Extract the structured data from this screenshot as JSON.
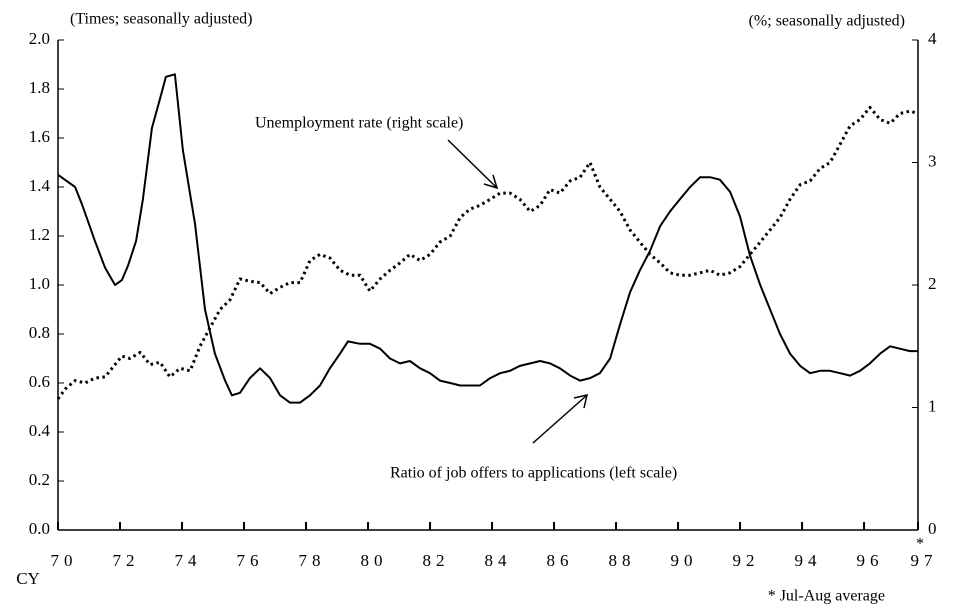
{
  "chart_data": {
    "type": "line",
    "y_unit_label": "(Times; seasonally adjusted)",
    "y2_unit_label": "(%; seasonally adjusted)",
    "x_axis_label": "CY",
    "footnote": "* Jul-Aug average",
    "footnote_marker": "*",
    "xlim": [
      1970,
      1997.74
    ],
    "xticks": [
      {
        "value": 1970,
        "label": "70"
      },
      {
        "value": 1972,
        "label": "72"
      },
      {
        "value": 1974,
        "label": "74"
      },
      {
        "value": 1976,
        "label": "76"
      },
      {
        "value": 1978,
        "label": "78"
      },
      {
        "value": 1980,
        "label": "80"
      },
      {
        "value": 1982,
        "label": "82"
      },
      {
        "value": 1984,
        "label": "84"
      },
      {
        "value": 1986,
        "label": "86"
      },
      {
        "value": 1988,
        "label": "88"
      },
      {
        "value": 1990,
        "label": "90"
      },
      {
        "value": 1992,
        "label": "92"
      },
      {
        "value": 1994,
        "label": "94"
      },
      {
        "value": 1996,
        "label": "96"
      },
      {
        "value": 1997.74,
        "label": "97"
      }
    ],
    "ylim": [
      0,
      2
    ],
    "yticks": [
      {
        "value": 0,
        "label": "0.0"
      },
      0.2,
      0.4,
      0.6,
      0.8,
      {
        "value": 1,
        "label": "1.0"
      },
      1.2,
      1.4,
      1.6,
      1.8,
      {
        "value": 2,
        "label": "2.0"
      }
    ],
    "y2lim": [
      0,
      4
    ],
    "y2ticks": [
      0,
      1,
      2,
      3,
      4
    ],
    "series": [
      {
        "name": "Ratio of job offers to applications (left scale)",
        "color": "#000000",
        "style": "solid",
        "x": [
          1970.0,
          1970.55,
          1970.77,
          1971.19,
          1971.52,
          1971.84,
          1972.06,
          1972.26,
          1972.52,
          1972.74,
          1973.03,
          1973.29,
          1973.48,
          1973.77,
          1974.03,
          1974.42,
          1974.74,
          1975.06,
          1975.39,
          1975.61,
          1975.87,
          1976.19,
          1976.52,
          1976.84,
          1977.16,
          1977.48,
          1977.81,
          1978.13,
          1978.45,
          1978.77,
          1979.1,
          1979.35,
          1979.74,
          1980.06,
          1980.39,
          1980.71,
          1981.03,
          1981.35,
          1981.68,
          1982.0,
          1982.32,
          1982.65,
          1982.97,
          1983.29,
          1983.61,
          1983.94,
          1984.26,
          1984.58,
          1984.9,
          1985.23,
          1985.55,
          1985.87,
          1986.19,
          1986.52,
          1986.84,
          1987.16,
          1987.48,
          1987.81,
          1988.13,
          1988.45,
          1988.77,
          1989.1,
          1989.42,
          1989.74,
          1990.06,
          1990.39,
          1990.71,
          1991.03,
          1991.35,
          1991.68,
          1992.0,
          1992.32,
          1992.65,
          1992.97,
          1993.29,
          1993.61,
          1993.94,
          1994.26,
          1994.58,
          1994.9,
          1995.23,
          1995.55,
          1995.87,
          1996.19,
          1996.52,
          1996.84,
          1997.16,
          1997.48,
          1997.74
        ],
        "values": [
          1.45,
          1.4,
          1.33,
          1.18,
          1.07,
          1.0,
          1.02,
          1.08,
          1.18,
          1.35,
          1.64,
          1.76,
          1.85,
          1.86,
          1.55,
          1.25,
          0.9,
          0.72,
          0.61,
          0.55,
          0.56,
          0.62,
          0.66,
          0.62,
          0.55,
          0.52,
          0.52,
          0.55,
          0.59,
          0.66,
          0.72,
          0.77,
          0.76,
          0.76,
          0.74,
          0.7,
          0.68,
          0.69,
          0.66,
          0.64,
          0.61,
          0.6,
          0.59,
          0.59,
          0.59,
          0.62,
          0.64,
          0.65,
          0.67,
          0.68,
          0.69,
          0.68,
          0.66,
          0.63,
          0.61,
          0.62,
          0.64,
          0.7,
          0.84,
          0.97,
          1.06,
          1.14,
          1.24,
          1.3,
          1.35,
          1.4,
          1.44,
          1.44,
          1.43,
          1.38,
          1.28,
          1.12,
          1.0,
          0.9,
          0.8,
          0.72,
          0.67,
          0.64,
          0.65,
          0.65,
          0.64,
          0.63,
          0.65,
          0.68,
          0.72,
          0.75,
          0.74,
          0.73,
          0.73
        ]
      },
      {
        "name": "Unemployment rate (right scale)",
        "color": "#000000",
        "style": "dotted",
        "axis": "y2",
        "x": [
          1970.0,
          1970.23,
          1970.55,
          1970.87,
          1971.19,
          1971.52,
          1971.84,
          1972.06,
          1972.32,
          1972.65,
          1972.97,
          1973.29,
          1973.61,
          1973.94,
          1974.26,
          1974.58,
          1974.9,
          1975.23,
          1975.55,
          1975.87,
          1976.19,
          1976.52,
          1976.84,
          1977.16,
          1977.48,
          1977.81,
          1978.13,
          1978.45,
          1978.77,
          1979.1,
          1979.42,
          1979.74,
          1980.06,
          1980.39,
          1980.71,
          1981.03,
          1981.35,
          1981.68,
          1982.0,
          1982.32,
          1982.65,
          1982.97,
          1983.29,
          1983.61,
          1983.94,
          1984.26,
          1984.58,
          1984.9,
          1985.23,
          1985.55,
          1985.87,
          1986.19,
          1986.52,
          1986.84,
          1987.16,
          1987.48,
          1987.81,
          1988.13,
          1988.45,
          1988.77,
          1989.1,
          1989.42,
          1989.74,
          1990.06,
          1990.39,
          1990.71,
          1991.03,
          1991.35,
          1991.68,
          1992.0,
          1992.32,
          1992.65,
          1992.97,
          1993.29,
          1993.61,
          1993.94,
          1994.26,
          1994.58,
          1994.9,
          1995.23,
          1995.55,
          1995.87,
          1996.19,
          1996.52,
          1996.84,
          1997.16,
          1997.48,
          1997.74
        ],
        "values": [
          1.07,
          1.15,
          1.22,
          1.2,
          1.24,
          1.25,
          1.35,
          1.42,
          1.4,
          1.45,
          1.35,
          1.37,
          1.25,
          1.32,
          1.3,
          1.5,
          1.65,
          1.8,
          1.88,
          2.05,
          2.03,
          2.02,
          1.93,
          1.98,
          2.02,
          2.02,
          2.2,
          2.25,
          2.22,
          2.12,
          2.08,
          2.08,
          1.95,
          2.05,
          2.12,
          2.18,
          2.25,
          2.2,
          2.25,
          2.35,
          2.4,
          2.55,
          2.62,
          2.65,
          2.7,
          2.75,
          2.75,
          2.7,
          2.6,
          2.65,
          2.78,
          2.75,
          2.85,
          2.88,
          3.0,
          2.8,
          2.7,
          2.6,
          2.45,
          2.35,
          2.25,
          2.18,
          2.1,
          2.08,
          2.08,
          2.1,
          2.12,
          2.08,
          2.1,
          2.15,
          2.25,
          2.35,
          2.45,
          2.55,
          2.7,
          2.82,
          2.85,
          2.95,
          3.0,
          3.15,
          3.3,
          3.35,
          3.45,
          3.35,
          3.32,
          3.4,
          3.42,
          3.4
        ]
      }
    ]
  }
}
